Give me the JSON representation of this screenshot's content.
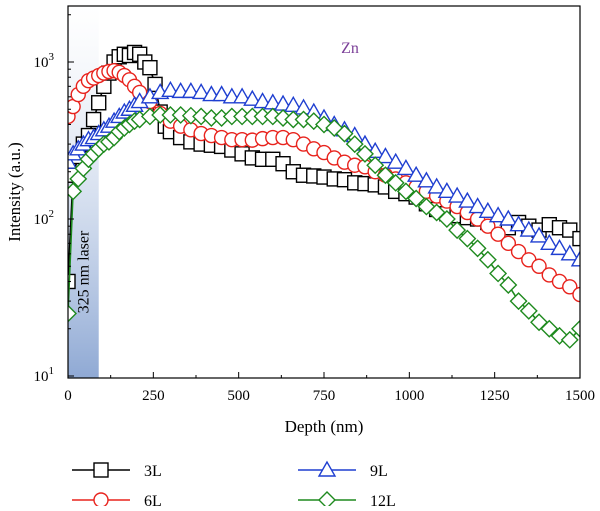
{
  "chart_data": {
    "type": "scatter",
    "xlabel": "Depth (nm)",
    "ylabel": "Intensity (a.u.)",
    "xlim": [
      0,
      1500
    ],
    "ylim": [
      10,
      2000
    ],
    "yscale": "log",
    "grid": false,
    "legend_position": "bottom",
    "x_ticks": [
      {
        "value": 0,
        "label": "0"
      },
      {
        "value": 250,
        "label": "250"
      },
      {
        "value": 500,
        "label": "500"
      },
      {
        "value": 750,
        "label": "750"
      },
      {
        "value": 1000,
        "label": "1000"
      },
      {
        "value": 1250,
        "label": "1250"
      },
      {
        "value": 1500,
        "label": "1500"
      }
    ],
    "y_ticks": [
      {
        "value": 10,
        "label": "10",
        "exp": "1"
      },
      {
        "value": 100,
        "label": "10",
        "exp": "2"
      },
      {
        "value": 1000,
        "label": "10",
        "exp": "3"
      }
    ],
    "annotations": {
      "element_label": "Zn",
      "element_color": "#7b3f98",
      "band_label": "325 nm laser",
      "band_range": [
        0,
        90
      ],
      "band_color": "#9fb6d9"
    },
    "series": [
      {
        "name": "3L",
        "color": "#000000",
        "marker": "square",
        "x": [
          0,
          15,
          30,
          45,
          60,
          75,
          90,
          105,
          120,
          135,
          150,
          165,
          180,
          195,
          210,
          225,
          240,
          255,
          270,
          285,
          300,
          330,
          360,
          390,
          420,
          450,
          480,
          510,
          540,
          570,
          600,
          630,
          660,
          690,
          720,
          750,
          780,
          810,
          840,
          870,
          900,
          930,
          960,
          990,
          1020,
          1050,
          1080,
          1110,
          1140,
          1170,
          1200,
          1230,
          1260,
          1290,
          1320,
          1350,
          1380,
          1410,
          1440,
          1470,
          1500
        ],
        "y": [
          40,
          190,
          250,
          300,
          340,
          430,
          550,
          700,
          850,
          1000,
          1080,
          1120,
          1100,
          1150,
          1120,
          1000,
          920,
          720,
          480,
          390,
          360,
          330,
          310,
          300,
          295,
          290,
          275,
          260,
          245,
          240,
          240,
          225,
          200,
          190,
          188,
          185,
          180,
          178,
          170,
          168,
          165,
          160,
          150,
          145,
          138,
          125,
          115,
          108,
          105,
          102,
          100,
          95,
          90,
          88,
          95,
          90,
          85,
          92,
          88,
          85,
          75
        ]
      },
      {
        "name": "6L",
        "color": "#e8231d",
        "marker": "circle",
        "x": [
          0,
          15,
          30,
          45,
          60,
          75,
          90,
          105,
          120,
          135,
          150,
          165,
          180,
          195,
          210,
          240,
          270,
          300,
          330,
          360,
          390,
          420,
          450,
          480,
          510,
          540,
          570,
          600,
          630,
          660,
          690,
          720,
          750,
          780,
          810,
          840,
          870,
          900,
          930,
          960,
          990,
          1020,
          1050,
          1080,
          1110,
          1140,
          1170,
          1200,
          1230,
          1260,
          1290,
          1320,
          1350,
          1380,
          1410,
          1440,
          1470,
          1500
        ],
        "y": [
          450,
          520,
          620,
          700,
          760,
          790,
          820,
          850,
          870,
          880,
          860,
          820,
          770,
          700,
          640,
          560,
          470,
          420,
          390,
          370,
          350,
          340,
          330,
          320,
          320,
          318,
          325,
          330,
          330,
          320,
          300,
          280,
          265,
          245,
          230,
          220,
          215,
          200,
          190,
          180,
          170,
          160,
          150,
          140,
          130,
          120,
          110,
          100,
          90,
          80,
          70,
          62,
          55,
          50,
          44,
          40,
          37,
          33
        ]
      },
      {
        "name": "9L",
        "color": "#1f3fd1",
        "marker": "triangle",
        "x": [
          0,
          15,
          30,
          45,
          60,
          75,
          90,
          105,
          120,
          135,
          150,
          165,
          180,
          195,
          210,
          240,
          270,
          300,
          330,
          360,
          390,
          420,
          450,
          480,
          510,
          540,
          570,
          600,
          630,
          660,
          690,
          720,
          750,
          780,
          810,
          840,
          870,
          900,
          930,
          960,
          990,
          1020,
          1050,
          1080,
          1110,
          1140,
          1170,
          1200,
          1230,
          1260,
          1290,
          1320,
          1350,
          1380,
          1410,
          1440,
          1470,
          1500
        ],
        "y": [
          230,
          260,
          280,
          300,
          320,
          330,
          350,
          370,
          390,
          420,
          450,
          480,
          500,
          530,
          560,
          600,
          640,
          660,
          650,
          650,
          640,
          620,
          620,
          600,
          600,
          580,
          560,
          550,
          540,
          530,
          510,
          480,
          440,
          400,
          370,
          340,
          300,
          270,
          250,
          230,
          210,
          190,
          175,
          160,
          150,
          140,
          130,
          120,
          112,
          105,
          100,
          92,
          85,
          78,
          70,
          65,
          60,
          55
        ]
      },
      {
        "name": "12L",
        "color": "#1e8a1e",
        "marker": "diamond",
        "x": [
          0,
          15,
          30,
          45,
          60,
          75,
          90,
          105,
          120,
          135,
          150,
          165,
          180,
          195,
          210,
          240,
          270,
          300,
          330,
          360,
          390,
          420,
          450,
          480,
          510,
          540,
          570,
          600,
          630,
          660,
          690,
          720,
          750,
          780,
          810,
          840,
          870,
          900,
          930,
          960,
          990,
          1020,
          1050,
          1080,
          1110,
          1140,
          1170,
          1200,
          1230,
          1260,
          1290,
          1320,
          1350,
          1380,
          1410,
          1440,
          1470,
          1500
        ],
        "y": [
          25,
          150,
          180,
          210,
          240,
          260,
          280,
          300,
          310,
          330,
          360,
          380,
          400,
          420,
          430,
          450,
          460,
          460,
          460,
          455,
          450,
          440,
          440,
          450,
          450,
          450,
          450,
          450,
          440,
          430,
          430,
          420,
          400,
          380,
          350,
          300,
          260,
          220,
          190,
          170,
          150,
          135,
          120,
          110,
          100,
          85,
          75,
          65,
          55,
          45,
          38,
          30,
          26,
          22,
          20,
          18,
          17,
          20
        ]
      }
    ]
  }
}
